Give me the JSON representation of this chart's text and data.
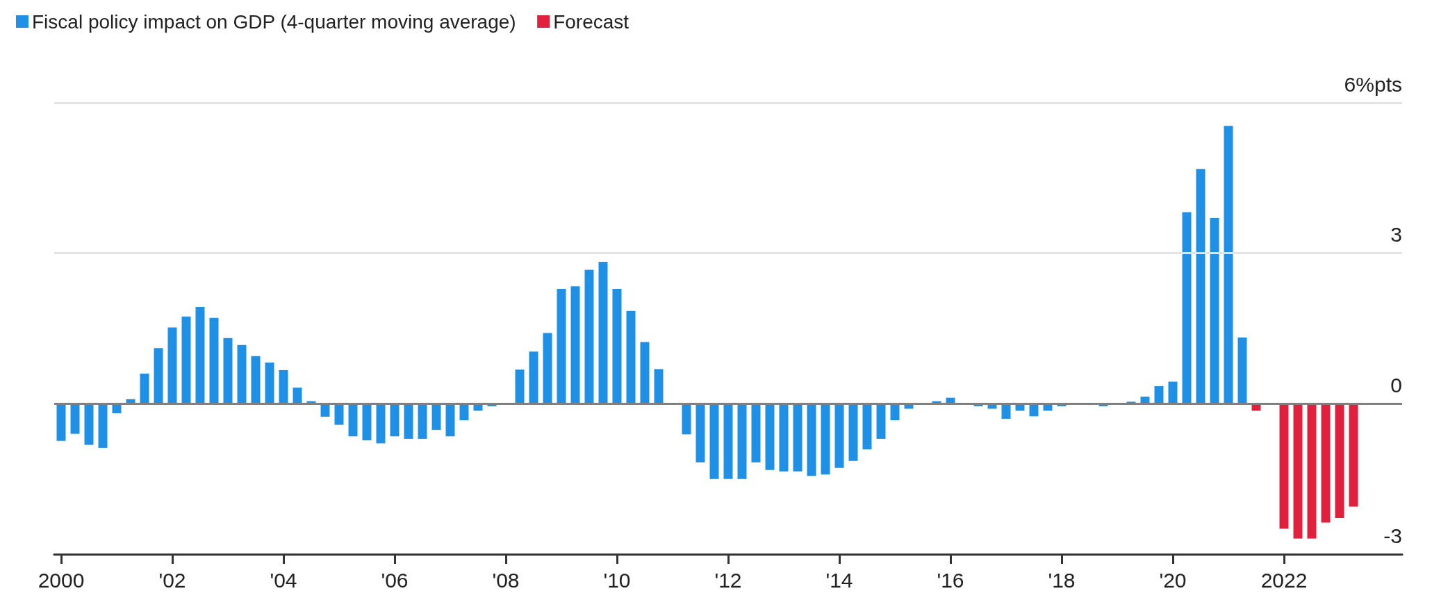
{
  "chart_data": {
    "type": "bar",
    "stacked": true,
    "legend": "top left",
    "categories": [
      "2000",
      null,
      null,
      null,
      null,
      null,
      null,
      null,
      "'02",
      null,
      null,
      null,
      null,
      null,
      null,
      null,
      "'04",
      null,
      null,
      null,
      null,
      null,
      null,
      null,
      "'06",
      null,
      null,
      null,
      null,
      null,
      null,
      null,
      "'08",
      null,
      null,
      null,
      null,
      null,
      null,
      null,
      "'10",
      null,
      null,
      null,
      null,
      null,
      null,
      null,
      "'12",
      null,
      null,
      null,
      null,
      null,
      null,
      null,
      "'14",
      null,
      null,
      null,
      null,
      null,
      null,
      null,
      "'16",
      null,
      null,
      null,
      null,
      null,
      null,
      null,
      "'18",
      null,
      null,
      null,
      null,
      null,
      null,
      null,
      "'20",
      null,
      null,
      null,
      null,
      null,
      null,
      null,
      "2022",
      null,
      null,
      null,
      null,
      null,
      null,
      null,
      null
    ],
    "ylim": [
      -3,
      6
    ],
    "yticks": [
      -3,
      0,
      3,
      {
        "value": 6,
        "label": "6%pts"
      }
    ],
    "ref_lines": [
      {
        "axis": "y",
        "value": 0,
        "color": "#808080"
      },
      {
        "axis": "y",
        "value": 3,
        "color": "#e3e3e3"
      },
      {
        "axis": "y",
        "value": 6,
        "color": "#e3e3e3"
      }
    ],
    "series": [
      {
        "name": "Fiscal policy impact on GDP (4-quarter moving average)",
        "color": "#1e90e6",
        "values": [
          -0.74,
          -0.6,
          -0.82,
          -0.88,
          -0.19,
          0.09,
          0.6,
          1.11,
          1.52,
          1.74,
          1.93,
          1.71,
          1.31,
          1.17,
          0.95,
          0.82,
          0.67,
          0.32,
          0.05,
          -0.26,
          -0.42,
          -0.65,
          -0.73,
          -0.79,
          -0.65,
          -0.7,
          -0.7,
          -0.52,
          -0.65,
          -0.33,
          -0.14,
          -0.05,
          null,
          0.68,
          1.04,
          1.41,
          2.29,
          2.34,
          2.67,
          2.83,
          2.29,
          1.85,
          1.23,
          0.69,
          0,
          -0.61,
          -1.17,
          -1.5,
          -1.5,
          -1.5,
          -1.17,
          -1.32,
          -1.35,
          -1.35,
          -1.44,
          -1.41,
          -1.28,
          -1.14,
          -0.91,
          -0.7,
          -0.33,
          -0.1,
          -0.02,
          0.05,
          0.12,
          0,
          -0.05,
          -0.1,
          -0.3,
          -0.14,
          -0.25,
          -0.14,
          -0.05,
          0,
          null,
          -0.05,
          0,
          0.04,
          0.14,
          0.35,
          0.44,
          3.82,
          4.68,
          3.7,
          5.54,
          1.32,
          null,
          null,
          null,
          null,
          null,
          null,
          null,
          null,
          null,
          null,
          null
        ]
      },
      {
        "name": "Forecast",
        "color": "#e0203c",
        "values": [
          null,
          null,
          null,
          null,
          null,
          null,
          null,
          null,
          null,
          null,
          null,
          null,
          null,
          null,
          null,
          null,
          null,
          null,
          null,
          null,
          null,
          null,
          null,
          null,
          null,
          null,
          null,
          null,
          null,
          null,
          null,
          null,
          null,
          null,
          null,
          null,
          null,
          null,
          null,
          null,
          null,
          null,
          null,
          null,
          null,
          null,
          null,
          null,
          null,
          null,
          null,
          null,
          null,
          null,
          null,
          null,
          null,
          null,
          null,
          null,
          null,
          null,
          null,
          null,
          null,
          null,
          null,
          null,
          null,
          null,
          null,
          null,
          null,
          null,
          null,
          null,
          null,
          null,
          null,
          null,
          null,
          null,
          null,
          null,
          null,
          null,
          -0.14,
          null,
          -2.49,
          -2.69,
          -2.69,
          -2.37,
          -2.28,
          -2.05,
          null,
          null,
          null
        ]
      }
    ]
  }
}
